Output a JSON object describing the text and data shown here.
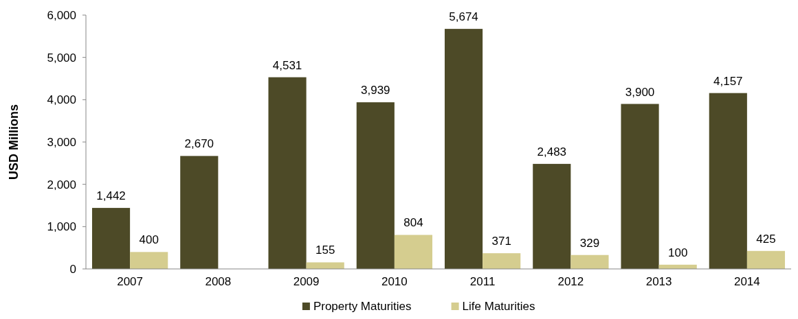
{
  "chart_data": {
    "type": "bar",
    "ylabel": "USD Millions",
    "categories": [
      "2007",
      "2008",
      "2009",
      "2010",
      "2011",
      "2012",
      "2013",
      "2014"
    ],
    "series": [
      {
        "name": "Property Maturities",
        "color": "#4d4a27",
        "values": [
          1442,
          2670,
          4531,
          3939,
          5674,
          2483,
          3900,
          4157
        ],
        "value_labels": [
          "1,442",
          "2,670",
          "4,531",
          "3,939",
          "5,674",
          "2,483",
          "3,900",
          "4,157"
        ]
      },
      {
        "name": "Life Maturities",
        "color": "#d5cd8f",
        "values": [
          400,
          null,
          155,
          804,
          371,
          329,
          100,
          425
        ],
        "value_labels": [
          "400",
          null,
          "155",
          "804",
          "371",
          "329",
          "100",
          "425"
        ]
      }
    ],
    "ylim": [
      0,
      6000
    ],
    "yticks": [
      {
        "value": 0,
        "label": "0"
      },
      {
        "value": 1000,
        "label": "1,000"
      },
      {
        "value": 2000,
        "label": "2,000"
      },
      {
        "value": 3000,
        "label": "3,000"
      },
      {
        "value": 4000,
        "label": "4,000"
      },
      {
        "value": 5000,
        "label": "5,000"
      },
      {
        "value": 6000,
        "label": "6,000"
      }
    ],
    "grid": false,
    "legend": "bottom"
  }
}
